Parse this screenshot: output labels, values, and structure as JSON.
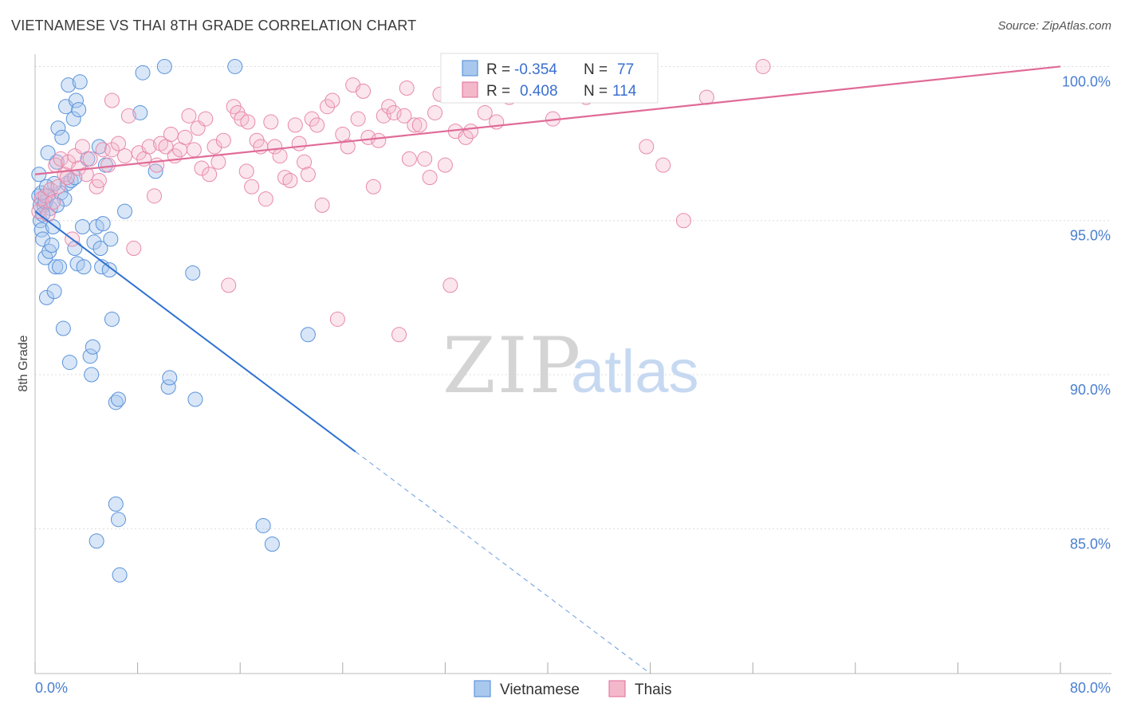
{
  "header": {
    "title": "VIETNAMESE VS THAI 8TH GRADE CORRELATION CHART",
    "source": "Source: ZipAtlas.com"
  },
  "watermark": {
    "zip": "ZIP",
    "atlas": "atlas"
  },
  "colors": {
    "blue": "#4a88d6",
    "blue_fill": "#a9c8ee",
    "pink": "#e06b97",
    "pink_fill": "#f4b8cb",
    "grid": "#dcdcdc",
    "tick_text": "#4a7fd0"
  },
  "legend": {
    "rows": [
      {
        "r_label": "R =",
        "r_value": "-0.354",
        "n_label": "N =",
        "n_value": "77"
      },
      {
        "r_label": "R =",
        "r_value": "0.408",
        "n_label": "N =",
        "n_value": "114"
      }
    ]
  },
  "chart_data": {
    "type": "scatter",
    "title": "VIETNAMESE VS THAI 8TH GRADE CORRELATION CHART",
    "xlabel": "",
    "ylabel": "8th Grade",
    "xlim": [
      0,
      80
    ],
    "ylim": [
      80.3,
      100.4
    ],
    "x_tick_labels": [
      "0.0%",
      "80.0%"
    ],
    "y_ticks": [
      100,
      95,
      90,
      85
    ],
    "y_tick_labels": [
      "100.0%",
      "95.0%",
      "90.0%",
      "85.0%"
    ],
    "grid": true,
    "legend_position": "top-center",
    "series": [
      {
        "name": "Vietnamese",
        "color": "#4a88d6",
        "points": [
          [
            0.3,
            96.5
          ],
          [
            0.3,
            95.8
          ],
          [
            0.4,
            95.5
          ],
          [
            0.4,
            95.0
          ],
          [
            0.5,
            94.7
          ],
          [
            0.6,
            94.4
          ],
          [
            0.7,
            95.5
          ],
          [
            0.8,
            93.8
          ],
          [
            0.9,
            92.5
          ],
          [
            1.0,
            97.2
          ],
          [
            1.1,
            94.0
          ],
          [
            1.2,
            95.4
          ],
          [
            1.3,
            94.2
          ],
          [
            1.4,
            94.8
          ],
          [
            1.5,
            92.7
          ],
          [
            1.6,
            93.5
          ],
          [
            1.7,
            96.9
          ],
          [
            1.8,
            98.0
          ],
          [
            1.9,
            93.5
          ],
          [
            2.1,
            97.7
          ],
          [
            2.2,
            91.5
          ],
          [
            2.4,
            98.7
          ],
          [
            2.5,
            96.2
          ],
          [
            2.6,
            99.4
          ],
          [
            2.7,
            90.4
          ],
          [
            2.8,
            96.3
          ],
          [
            3.0,
            98.3
          ],
          [
            3.1,
            94.1
          ],
          [
            3.2,
            98.9
          ],
          [
            3.3,
            93.6
          ],
          [
            3.4,
            98.6
          ],
          [
            3.5,
            99.5
          ],
          [
            3.7,
            94.8
          ],
          [
            3.8,
            93.5
          ],
          [
            4.3,
            90.6
          ],
          [
            4.4,
            90.0
          ],
          [
            4.5,
            90.9
          ],
          [
            4.6,
            94.3
          ],
          [
            4.8,
            94.8
          ],
          [
            5.0,
            97.4
          ],
          [
            5.1,
            94.1
          ],
          [
            5.2,
            93.5
          ],
          [
            5.3,
            94.9
          ],
          [
            5.5,
            96.8
          ],
          [
            5.8,
            93.4
          ],
          [
            5.9,
            94.4
          ],
          [
            6.0,
            91.8
          ],
          [
            6.3,
            89.1
          ],
          [
            6.5,
            89.2
          ],
          [
            7.0,
            95.3
          ],
          [
            8.2,
            98.5
          ],
          [
            8.4,
            99.8
          ],
          [
            9.4,
            96.6
          ],
          [
            10.1,
            100.0
          ],
          [
            10.4,
            89.6
          ],
          [
            10.5,
            89.9
          ],
          [
            12.3,
            93.3
          ],
          [
            12.5,
            89.2
          ],
          [
            15.6,
            100.0
          ],
          [
            17.8,
            85.1
          ],
          [
            18.5,
            84.5
          ],
          [
            21.3,
            91.3
          ],
          [
            6.3,
            85.8
          ],
          [
            6.5,
            85.3
          ],
          [
            4.8,
            84.6
          ],
          [
            6.6,
            83.5
          ],
          [
            2.0,
            95.9
          ],
          [
            1.0,
            95.8
          ],
          [
            0.6,
            95.2
          ],
          [
            1.5,
            96.2
          ],
          [
            3.1,
            96.4
          ],
          [
            0.8,
            95.6
          ],
          [
            2.3,
            95.7
          ],
          [
            0.5,
            95.9
          ],
          [
            1.7,
            95.5
          ],
          [
            4.1,
            97.0
          ],
          [
            0.9,
            96.1
          ]
        ]
      },
      {
        "name": "Thais",
        "color": "#e06b97",
        "points": [
          [
            0.3,
            95.3
          ],
          [
            0.5,
            95.7
          ],
          [
            0.8,
            95.8
          ],
          [
            1.0,
            95.2
          ],
          [
            1.2,
            96.0
          ],
          [
            1.4,
            95.6
          ],
          [
            1.6,
            96.8
          ],
          [
            1.8,
            96.1
          ],
          [
            2.0,
            97.0
          ],
          [
            2.3,
            96.5
          ],
          [
            2.6,
            96.9
          ],
          [
            2.9,
            94.4
          ],
          [
            3.1,
            97.1
          ],
          [
            3.4,
            96.7
          ],
          [
            3.7,
            97.4
          ],
          [
            4.0,
            96.5
          ],
          [
            4.3,
            97.0
          ],
          [
            4.8,
            96.1
          ],
          [
            5.0,
            96.3
          ],
          [
            5.3,
            97.3
          ],
          [
            5.7,
            96.8
          ],
          [
            6.0,
            97.3
          ],
          [
            6.5,
            97.5
          ],
          [
            7.0,
            97.1
          ],
          [
            7.3,
            98.4
          ],
          [
            7.7,
            94.1
          ],
          [
            8.1,
            97.2
          ],
          [
            8.5,
            97.0
          ],
          [
            8.9,
            97.4
          ],
          [
            9.3,
            95.8
          ],
          [
            9.5,
            96.8
          ],
          [
            9.8,
            97.5
          ],
          [
            10.2,
            97.4
          ],
          [
            10.6,
            97.8
          ],
          [
            10.9,
            97.1
          ],
          [
            11.3,
            97.3
          ],
          [
            11.7,
            97.7
          ],
          [
            12.0,
            98.4
          ],
          [
            12.4,
            97.3
          ],
          [
            12.7,
            98.0
          ],
          [
            13.0,
            96.7
          ],
          [
            13.3,
            98.3
          ],
          [
            13.6,
            96.5
          ],
          [
            14.0,
            97.4
          ],
          [
            14.3,
            96.9
          ],
          [
            14.7,
            97.6
          ],
          [
            15.1,
            92.9
          ],
          [
            15.5,
            98.7
          ],
          [
            15.8,
            98.5
          ],
          [
            16.1,
            98.3
          ],
          [
            16.5,
            96.6
          ],
          [
            16.9,
            96.1
          ],
          [
            17.3,
            97.6
          ],
          [
            17.6,
            97.4
          ],
          [
            18.0,
            95.7
          ],
          [
            18.4,
            98.2
          ],
          [
            18.7,
            97.4
          ],
          [
            19.1,
            97.1
          ],
          [
            19.5,
            96.4
          ],
          [
            19.9,
            96.3
          ],
          [
            20.3,
            98.1
          ],
          [
            20.6,
            97.5
          ],
          [
            21.0,
            96.9
          ],
          [
            21.3,
            96.5
          ],
          [
            21.6,
            98.3
          ],
          [
            22.0,
            98.1
          ],
          [
            22.4,
            95.5
          ],
          [
            22.8,
            98.7
          ],
          [
            23.2,
            98.9
          ],
          [
            23.6,
            91.8
          ],
          [
            24.0,
            97.8
          ],
          [
            24.4,
            97.4
          ],
          [
            24.8,
            99.4
          ],
          [
            25.2,
            98.3
          ],
          [
            25.6,
            99.2
          ],
          [
            26.0,
            97.7
          ],
          [
            26.4,
            96.1
          ],
          [
            26.8,
            97.6
          ],
          [
            27.2,
            98.4
          ],
          [
            27.6,
            98.7
          ],
          [
            28.0,
            98.5
          ],
          [
            28.4,
            91.3
          ],
          [
            28.8,
            98.4
          ],
          [
            29.2,
            97.0
          ],
          [
            29.6,
            98.1
          ],
          [
            30.0,
            98.1
          ],
          [
            30.4,
            97.0
          ],
          [
            30.8,
            96.4
          ],
          [
            31.2,
            98.5
          ],
          [
            31.6,
            99.1
          ],
          [
            32.0,
            96.8
          ],
          [
            32.4,
            92.9
          ],
          [
            32.8,
            97.9
          ],
          [
            33.2,
            99.4
          ],
          [
            33.6,
            97.7
          ],
          [
            34.0,
            97.9
          ],
          [
            35.1,
            98.5
          ],
          [
            36.0,
            98.2
          ],
          [
            37.0,
            99.0
          ],
          [
            40.4,
            98.3
          ],
          [
            41.0,
            99.3
          ],
          [
            43.0,
            99.0
          ],
          [
            44.2,
            99.2
          ],
          [
            45.9,
            100.0
          ],
          [
            47.7,
            97.4
          ],
          [
            49.0,
            96.8
          ],
          [
            50.6,
            95.0
          ],
          [
            52.4,
            99.0
          ],
          [
            56.8,
            100.0
          ],
          [
            34.5,
            99.8
          ],
          [
            16.6,
            98.2
          ],
          [
            6.0,
            98.9
          ],
          [
            2.5,
            96.4
          ],
          [
            29.0,
            99.3
          ]
        ]
      }
    ],
    "trend_lines": [
      {
        "series": "Vietnamese",
        "solid": [
          [
            0,
            95.3
          ],
          [
            25,
            87.5
          ]
        ],
        "dashed": [
          [
            25,
            87.5
          ],
          [
            48,
            80.3
          ]
        ]
      },
      {
        "series": "Thais",
        "solid": [
          [
            0,
            96.5
          ],
          [
            80,
            100.0
          ]
        ]
      }
    ]
  },
  "bottom_legend": {
    "items": [
      {
        "label": "Vietnamese"
      },
      {
        "label": "Thais"
      }
    ]
  }
}
